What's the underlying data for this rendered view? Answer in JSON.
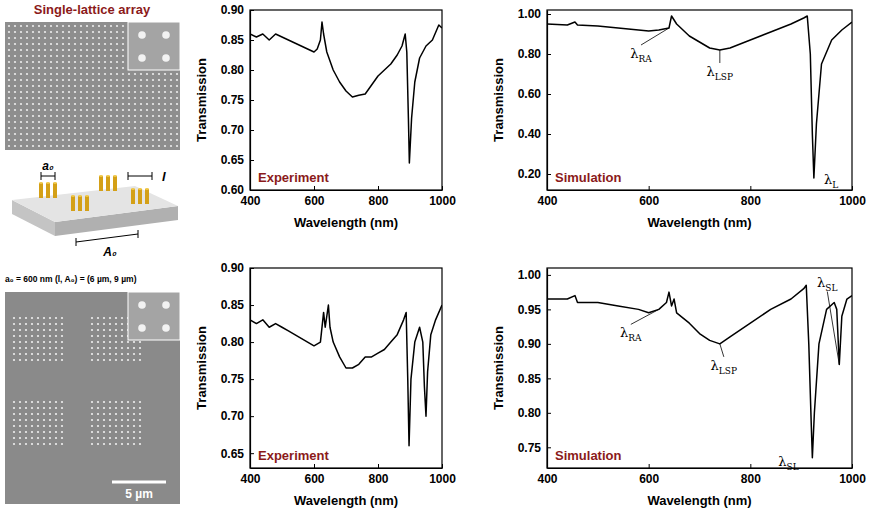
{
  "figure": {
    "title": "Single-lattice array",
    "schematic_labels": [
      "l",
      "a₀",
      "A₀"
    ],
    "caption": "a₀ = 600 nm (l, A₀) = (6 µm, 9 µm)",
    "scale_bar": "5 µm"
  },
  "chart_data": [
    {
      "type": "line",
      "title": "Experiment",
      "x_label": "Wavelength (nm)",
      "y_label": "Transmission",
      "xlim": [
        400,
        1000
      ],
      "xticks": [
        400,
        600,
        800,
        1000
      ],
      "ylim": [
        0.6,
        0.9
      ],
      "yticks": [
        {
          "value": 0.6,
          "label": "0.60"
        },
        {
          "value": 0.65,
          "label": "0.65"
        },
        {
          "value": 0.7,
          "label": "0.70"
        },
        {
          "value": 0.75,
          "label": "0.75"
        },
        {
          "value": 0.8,
          "label": "0.80"
        },
        {
          "value": 0.85,
          "label": "0.85"
        },
        {
          "value": 0.9,
          "label": "0.90"
        }
      ],
      "x": [
        400,
        420,
        440,
        460,
        480,
        500,
        520,
        540,
        560,
        580,
        600,
        610,
        620,
        625,
        630,
        640,
        660,
        680,
        700,
        720,
        740,
        760,
        780,
        800,
        820,
        840,
        860,
        875,
        885,
        890,
        895,
        898,
        905,
        915,
        930,
        950,
        970,
        990,
        1000
      ],
      "series": [
        {
          "color": "#000000",
          "values": [
            0.86,
            0.855,
            0.86,
            0.85,
            0.86,
            0.855,
            0.85,
            0.845,
            0.84,
            0.835,
            0.83,
            0.835,
            0.85,
            0.88,
            0.86,
            0.83,
            0.8,
            0.78,
            0.765,
            0.755,
            0.758,
            0.76,
            0.775,
            0.79,
            0.8,
            0.81,
            0.825,
            0.84,
            0.86,
            0.83,
            0.72,
            0.645,
            0.72,
            0.78,
            0.82,
            0.84,
            0.85,
            0.875,
            0.87
          ]
        }
      ]
    },
    {
      "type": "line",
      "title": "Simulation",
      "x_label": "Wavelength (nm)",
      "y_label": "Transmission",
      "xlim": [
        400,
        1000
      ],
      "xticks": [
        400,
        600,
        800,
        1000
      ],
      "ylim": [
        0.12,
        1.02
      ],
      "yticks": [
        {
          "value": 0.2,
          "label": "0.20"
        },
        {
          "value": 0.4,
          "label": "0.40"
        },
        {
          "value": 0.6,
          "label": "0.60"
        },
        {
          "value": 0.8,
          "label": "0.80"
        },
        {
          "value": 1.0,
          "label": "1.00"
        }
      ],
      "x": [
        400,
        440,
        455,
        460,
        500,
        540,
        580,
        600,
        620,
        640,
        645,
        655,
        680,
        700,
        720,
        740,
        760,
        800,
        840,
        880,
        905,
        912,
        918,
        922,
        925,
        930,
        940,
        960,
        980,
        1000
      ],
      "series": [
        {
          "color": "#000000",
          "values": [
            0.95,
            0.945,
            0.96,
            0.945,
            0.94,
            0.93,
            0.92,
            0.915,
            0.92,
            0.93,
            0.99,
            0.95,
            0.89,
            0.86,
            0.83,
            0.82,
            0.83,
            0.87,
            0.91,
            0.95,
            0.98,
            0.99,
            0.8,
            0.4,
            0.18,
            0.45,
            0.75,
            0.87,
            0.92,
            0.96
          ]
        }
      ],
      "annotations": [
        {
          "symbol": "λ",
          "subscript": "RA",
          "x": 640,
          "y": 0.93
        },
        {
          "symbol": "λ",
          "subscript": "LSP",
          "x": 740,
          "y": 0.82
        },
        {
          "symbol": "λ",
          "subscript": "L",
          "x": 925,
          "y": 0.18
        }
      ]
    },
    {
      "type": "line",
      "title": "Experiment",
      "x_label": "Wavelength (nm)",
      "y_label": "Transmission",
      "xlim": [
        400,
        1000
      ],
      "xticks": [
        400,
        600,
        800,
        1000
      ],
      "ylim": [
        0.63,
        0.9
      ],
      "yticks": [
        {
          "value": 0.65,
          "label": "0.65"
        },
        {
          "value": 0.7,
          "label": "0.70"
        },
        {
          "value": 0.75,
          "label": "0.75"
        },
        {
          "value": 0.8,
          "label": "0.80"
        },
        {
          "value": 0.85,
          "label": "0.85"
        },
        {
          "value": 0.9,
          "label": "0.90"
        }
      ],
      "x": [
        400,
        420,
        440,
        460,
        480,
        500,
        520,
        540,
        560,
        580,
        600,
        620,
        630,
        635,
        645,
        650,
        660,
        680,
        700,
        720,
        740,
        760,
        780,
        800,
        820,
        840,
        860,
        880,
        888,
        893,
        897,
        903,
        915,
        930,
        940,
        945,
        950,
        955,
        965,
        980,
        1000
      ],
      "series": [
        {
          "color": "#000000",
          "values": [
            0.83,
            0.825,
            0.83,
            0.82,
            0.825,
            0.82,
            0.815,
            0.81,
            0.805,
            0.8,
            0.795,
            0.8,
            0.84,
            0.82,
            0.85,
            0.82,
            0.8,
            0.78,
            0.765,
            0.765,
            0.77,
            0.78,
            0.78,
            0.785,
            0.79,
            0.8,
            0.81,
            0.83,
            0.84,
            0.75,
            0.66,
            0.75,
            0.8,
            0.82,
            0.8,
            0.74,
            0.7,
            0.76,
            0.81,
            0.83,
            0.85
          ]
        }
      ]
    },
    {
      "type": "line",
      "title": "Simulation",
      "x_label": "Wavelength (nm)",
      "y_label": "Transmission",
      "xlim": [
        400,
        1000
      ],
      "xticks": [
        400,
        600,
        800,
        1000
      ],
      "ylim": [
        0.72,
        1.01
      ],
      "yticks": [
        {
          "value": 0.75,
          "label": "0.75"
        },
        {
          "value": 0.8,
          "label": "0.80"
        },
        {
          "value": 0.85,
          "label": "0.85"
        },
        {
          "value": 0.9,
          "label": "0.90"
        },
        {
          "value": 0.95,
          "label": "0.95"
        },
        {
          "value": 1.0,
          "label": "1.00"
        }
      ],
      "x": [
        400,
        440,
        455,
        460,
        500,
        540,
        580,
        600,
        620,
        635,
        640,
        645,
        650,
        655,
        680,
        700,
        720,
        740,
        760,
        800,
        840,
        880,
        905,
        910,
        915,
        920,
        922,
        926,
        935,
        950,
        965,
        970,
        975,
        980,
        990,
        1000
      ],
      "series": [
        {
          "color": "#000000",
          "values": [
            0.965,
            0.965,
            0.97,
            0.96,
            0.96,
            0.955,
            0.95,
            0.945,
            0.95,
            0.96,
            0.975,
            0.955,
            0.965,
            0.945,
            0.93,
            0.915,
            0.905,
            0.9,
            0.91,
            0.93,
            0.95,
            0.965,
            0.98,
            0.985,
            0.9,
            0.78,
            0.735,
            0.8,
            0.9,
            0.95,
            0.96,
            0.95,
            0.87,
            0.94,
            0.965,
            0.97
          ]
        }
      ],
      "annotations": [
        {
          "symbol": "λ",
          "subscript": "RA",
          "x": 620,
          "y": 0.95
        },
        {
          "symbol": "λ",
          "subscript": "LSP",
          "x": 740,
          "y": 0.9
        },
        {
          "symbol": "λ",
          "subscript": "SL",
          "x": 922,
          "y": 0.735
        },
        {
          "symbol": "λ",
          "subscript": "SL",
          "x": 975,
          "y": 0.87
        }
      ]
    }
  ]
}
